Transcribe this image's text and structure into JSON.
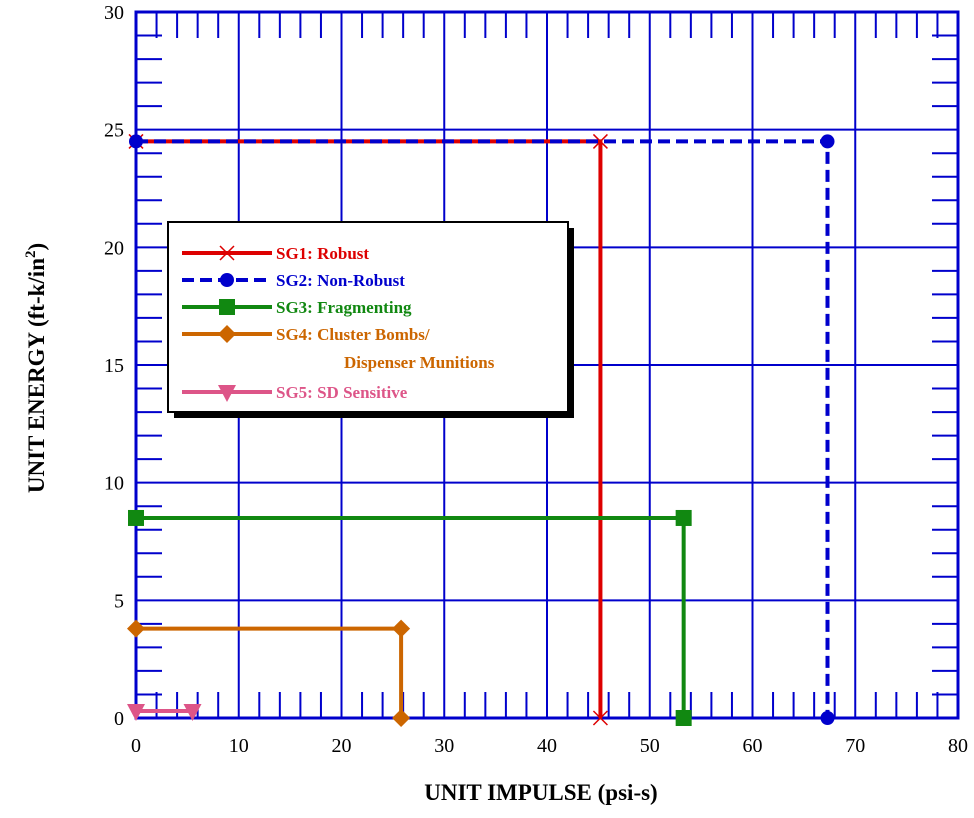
{
  "chart_data": {
    "type": "line",
    "title": "",
    "xlabel": "UNIT IMPULSE (psi-s)",
    "ylabel": "UNIT ENERGY (ft-k/in",
    "ylabel_superscript": "2",
    "ylabel_suffix": ")",
    "xlim": [
      0,
      80
    ],
    "ylim": [
      0,
      30
    ],
    "x_major_ticks": [
      0,
      10,
      20,
      30,
      40,
      50,
      60,
      70,
      80
    ],
    "y_major_ticks": [
      0,
      5,
      10,
      15,
      20,
      25,
      30
    ],
    "x_tick_labels": [
      "0",
      "10",
      "20",
      "30",
      "40",
      "50",
      "60",
      "70",
      "80"
    ],
    "y_tick_labels": [
      "0",
      "5",
      "10",
      "15",
      "20",
      "25",
      "30"
    ],
    "x_minor_step": 2,
    "y_minor_step": 1,
    "grid": true,
    "grid_color": "#0000cc",
    "legend_position": "upper-left",
    "series": [
      {
        "name": "SG1:  Robust",
        "color": "#dd0000",
        "line_style": "solid",
        "marker": "x",
        "x": [
          0,
          45.2,
          45.2
        ],
        "y": [
          24.5,
          24.5,
          0
        ]
      },
      {
        "name": "SG2:  Non-Robust",
        "color": "#0000cc",
        "line_style": "dashed",
        "marker": "circle",
        "x": [
          0,
          67.3,
          67.3
        ],
        "y": [
          24.5,
          24.5,
          0
        ]
      },
      {
        "name": "SG3:  Fragmenting",
        "color": "#118811",
        "line_style": "solid",
        "marker": "square",
        "x": [
          0,
          53.3,
          53.3
        ],
        "y": [
          8.5,
          8.5,
          0
        ]
      },
      {
        "name": "SG4:  Cluster Bombs/",
        "name_line2": "Dispenser Munitions",
        "color": "#cc6600",
        "line_style": "solid",
        "marker": "diamond",
        "x": [
          0,
          25.8,
          25.8
        ],
        "y": [
          3.8,
          3.8,
          0
        ]
      },
      {
        "name": "SG5:  SD Sensitive",
        "color": "#dd5588",
        "line_style": "solid",
        "marker": "triangle-down",
        "x": [
          0,
          5.5
        ],
        "y": [
          0.3,
          0.3
        ]
      }
    ]
  }
}
